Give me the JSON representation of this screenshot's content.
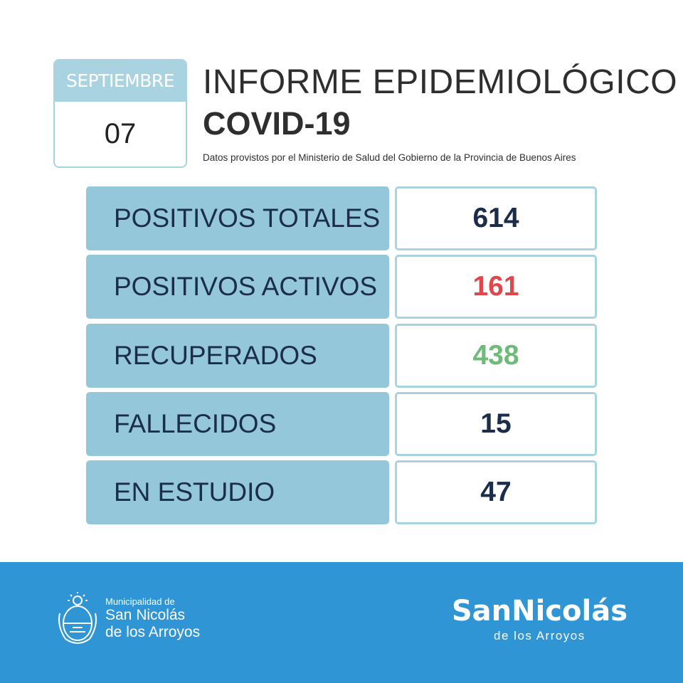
{
  "calendar": {
    "month": "SEPTIEMBRE",
    "day": "07"
  },
  "header": {
    "title_line1": "INFORME EPIDEMIOLÓGICO",
    "title_line2": "COVID-19",
    "source": "Datos provistos por el Ministerio de Salud del Gobierno de la Provincia de Buenos Aires"
  },
  "stats": [
    {
      "label": "POSITIVOS TOTALES",
      "value": "614",
      "color": "#1b2d4a"
    },
    {
      "label": "POSITIVOS ACTIVOS",
      "value": "161",
      "color": "#e0464a"
    },
    {
      "label": "RECUPERADOS",
      "value": "438",
      "color": "#6dbb78"
    },
    {
      "label": "FALLECIDOS",
      "value": "15",
      "color": "#1b2d4a"
    },
    {
      "label": "EN ESTUDIO",
      "value": "47",
      "color": "#1b2d4a"
    }
  ],
  "footer": {
    "muni_small": "Municipalidad de",
    "muni_line1": "San Nicolás",
    "muni_line2": "de los Arroyos",
    "brand_name": "SanNicolás",
    "brand_sub": "de los Arroyos",
    "crest_icon": "coat-of-arms-icon"
  },
  "colors": {
    "accent": "#a9d3e1",
    "label_bg": "#93c7d9",
    "footer_bg": "#2f95d4"
  }
}
